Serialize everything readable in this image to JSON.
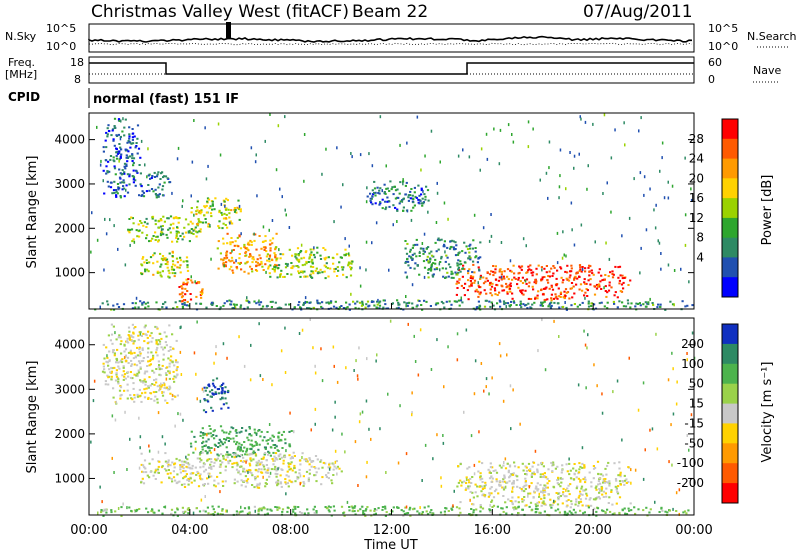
{
  "header": {
    "title": "Christmas Valley West (fitACF)",
    "beam": "Beam 22",
    "date": "07/Aug/2011"
  },
  "status_panel": {
    "nsky_label": "N.Sky",
    "nsearch_label": "N.Search",
    "noise_ticks_left": [
      "10^5",
      "10^0"
    ],
    "noise_ticks_right": [
      "10^5",
      "10^0"
    ],
    "freq_label_1": "Freq.",
    "freq_label_2": "[MHz]",
    "freq_ticks": [
      "18",
      "8"
    ],
    "nave_label": "Nave",
    "nave_ticks": [
      "60",
      "0"
    ],
    "cpid_label": "CPID",
    "cpid_value": "normal (fast) 151 IF"
  },
  "chart_data": [
    {
      "type": "heatmap",
      "name": "power",
      "ylabel": "Slant Range [km]",
      "yticks": [
        1000,
        2000,
        3000,
        4000
      ],
      "ylim": [
        180,
        4600
      ],
      "xlim": [
        0,
        24
      ],
      "colorbar": {
        "label": "Power [dB]",
        "tick_labels": [
          "28",
          "24",
          "20",
          "16",
          "12",
          "8",
          "4"
        ],
        "colors": [
          "#ff0000",
          "#ff5a00",
          "#ff9a00",
          "#ffd200",
          "#9ad200",
          "#2ea62e",
          "#2e8a64",
          "#2050b0",
          "#0000ff"
        ]
      },
      "echo_regions": [
        {
          "t0": 0.5,
          "t1": 2.0,
          "r0": 2700,
          "r1": 4500,
          "level": 4
        },
        {
          "t0": 2.0,
          "t1": 3.2,
          "r0": 2700,
          "r1": 3300,
          "level": 6
        },
        {
          "t0": 1.5,
          "t1": 4.5,
          "r0": 1700,
          "r1": 2300,
          "level": 14
        },
        {
          "t0": 4.0,
          "t1": 6.0,
          "r0": 2000,
          "r1": 2700,
          "level": 16
        },
        {
          "t0": 5.0,
          "t1": 7.5,
          "r0": 1000,
          "r1": 1900,
          "level": 22
        },
        {
          "t0": 7.0,
          "t1": 10.5,
          "r0": 900,
          "r1": 1600,
          "level": 14
        },
        {
          "t0": 2.0,
          "t1": 4.0,
          "r0": 900,
          "r1": 1500,
          "level": 16
        },
        {
          "t0": 3.5,
          "t1": 4.5,
          "r0": 300,
          "r1": 900,
          "level": 26
        },
        {
          "t0": 11.0,
          "t1": 13.5,
          "r0": 2400,
          "r1": 3100,
          "level": 6
        },
        {
          "t0": 14.5,
          "t1": 21.5,
          "r0": 400,
          "r1": 1200,
          "level": 28
        },
        {
          "t0": 12.5,
          "t1": 15.5,
          "r0": 900,
          "r1": 1800,
          "level": 8
        },
        {
          "t0": 0.0,
          "t1": 24.0,
          "r0": 180,
          "r1": 400,
          "level": 8
        }
      ]
    },
    {
      "type": "heatmap",
      "name": "velocity",
      "ylabel": "Slant Range [km]",
      "xlabel": "Time UT",
      "xticks": [
        "00:00",
        "04:00",
        "08:00",
        "12:00",
        "16:00",
        "20:00",
        "00:00"
      ],
      "yticks": [
        1000,
        2000,
        3000,
        4000
      ],
      "ylim": [
        180,
        4600
      ],
      "xlim": [
        0,
        24
      ],
      "colorbar": {
        "label": "Velocity [m s⁻¹]",
        "tick_labels": [
          "200",
          "100",
          "50",
          "15",
          "-15",
          "-50",
          "-100",
          "-200"
        ],
        "colors": [
          "#1030c0",
          "#2e8a64",
          "#4db34d",
          "#9ad24a",
          "#c8c8c8",
          "#ffd200",
          "#ff9a00",
          "#ff5a00",
          "#ff0000"
        ]
      },
      "echo_regions": [
        {
          "t0": 0.5,
          "t1": 3.5,
          "r0": 2700,
          "r1": 4500,
          "velocity": 0
        },
        {
          "t0": 4.0,
          "t1": 8.0,
          "r0": 1500,
          "r1": 2200,
          "velocity": 60
        },
        {
          "t0": 4.5,
          "t1": 5.5,
          "r0": 2500,
          "r1": 3300,
          "velocity": 150
        },
        {
          "t0": 2.0,
          "t1": 10.0,
          "r0": 800,
          "r1": 1600,
          "velocity": 0
        },
        {
          "t0": 14.5,
          "t1": 21.5,
          "r0": 400,
          "r1": 1400,
          "velocity": 0
        },
        {
          "t0": 0.0,
          "t1": 24.0,
          "r0": 180,
          "r1": 400,
          "velocity": 40
        }
      ]
    }
  ]
}
